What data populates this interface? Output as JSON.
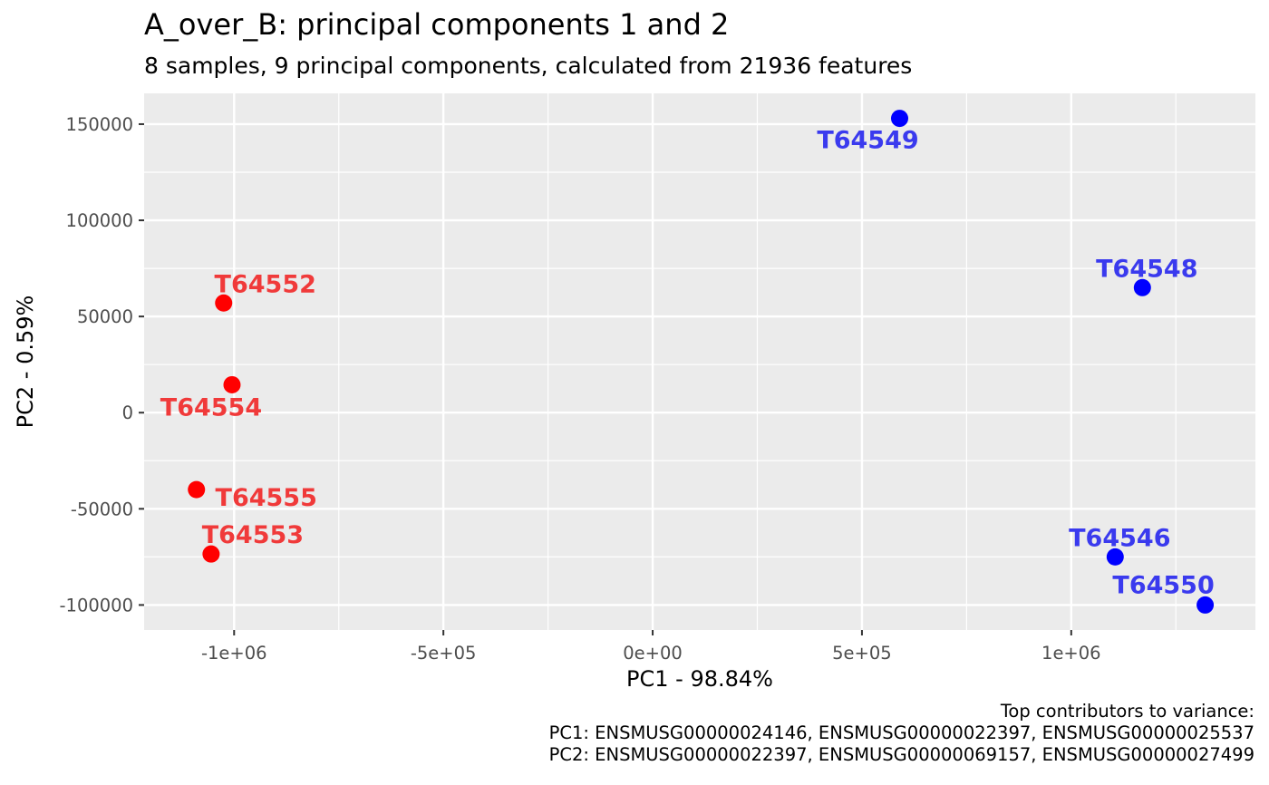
{
  "title": "A_over_B: principal components 1 and 2",
  "subtitle": "8 samples, 9 principal components, calculated from 21936 features",
  "caption": [
    "Top contributors to variance:",
    "PC1: ENSMUSG00000024146, ENSMUSG00000022397, ENSMUSG00000025537",
    "PC2: ENSMUSG00000022397, ENSMUSG00000069157, ENSMUSG00000027499"
  ],
  "colors": {
    "panel": "#EBEBEB",
    "grid": "#FFFFFF",
    "group_red": "#FF0000",
    "group_blue": "#0000FF",
    "label_red": "#F03A3A",
    "label_blue": "#3A3AEE",
    "tick_text": "#4D4D4D"
  },
  "chart_data": {
    "type": "scatter",
    "xlabel": "PC1 - 98.84%",
    "ylabel": "PC2 - 0.59%",
    "xlim": [
      -1215000,
      1440000
    ],
    "ylim": [
      -113000,
      166000
    ],
    "x_ticks": [
      {
        "value": -1000000,
        "label": "-1e+06"
      },
      {
        "value": -500000,
        "label": "-5e+05"
      },
      {
        "value": 0,
        "label": "0e+00"
      },
      {
        "value": 500000,
        "label": "5e+05"
      },
      {
        "value": 1000000,
        "label": "1e+06"
      }
    ],
    "x_minor": [
      -750000,
      -250000,
      250000,
      750000,
      1250000
    ],
    "y_ticks": [
      {
        "value": -100000,
        "label": "-100000"
      },
      {
        "value": -50000,
        "label": "-50000"
      },
      {
        "value": 0,
        "label": "0"
      },
      {
        "value": 50000,
        "label": "50000"
      },
      {
        "value": 100000,
        "label": "100000"
      },
      {
        "value": 150000,
        "label": "150000"
      }
    ],
    "y_minor": [
      -75000,
      -25000,
      25000,
      75000,
      125000
    ],
    "grid": true,
    "legend": "none",
    "points": [
      {
        "label": "T64549",
        "x": 590000,
        "y": 153000,
        "group": "blue",
        "label_pos": "below"
      },
      {
        "label": "T64548",
        "x": 1170000,
        "y": 65000,
        "group": "blue",
        "label_pos": "above"
      },
      {
        "label": "T64546",
        "x": 1105000,
        "y": -75000,
        "group": "blue",
        "label_pos": "above"
      },
      {
        "label": "T64550",
        "x": 1320000,
        "y": -100000,
        "group": "blue",
        "label_pos": "above-left"
      },
      {
        "label": "T64552",
        "x": -1025000,
        "y": 57000,
        "group": "red",
        "label_pos": "above-right"
      },
      {
        "label": "T64554",
        "x": -1005000,
        "y": 14500,
        "group": "red",
        "label_pos": "below-left"
      },
      {
        "label": "T64555",
        "x": -1090000,
        "y": -40000,
        "group": "red",
        "label_pos": "below-right"
      },
      {
        "label": "T64553",
        "x": -1055000,
        "y": -73500,
        "group": "red",
        "label_pos": "above-right"
      }
    ]
  }
}
